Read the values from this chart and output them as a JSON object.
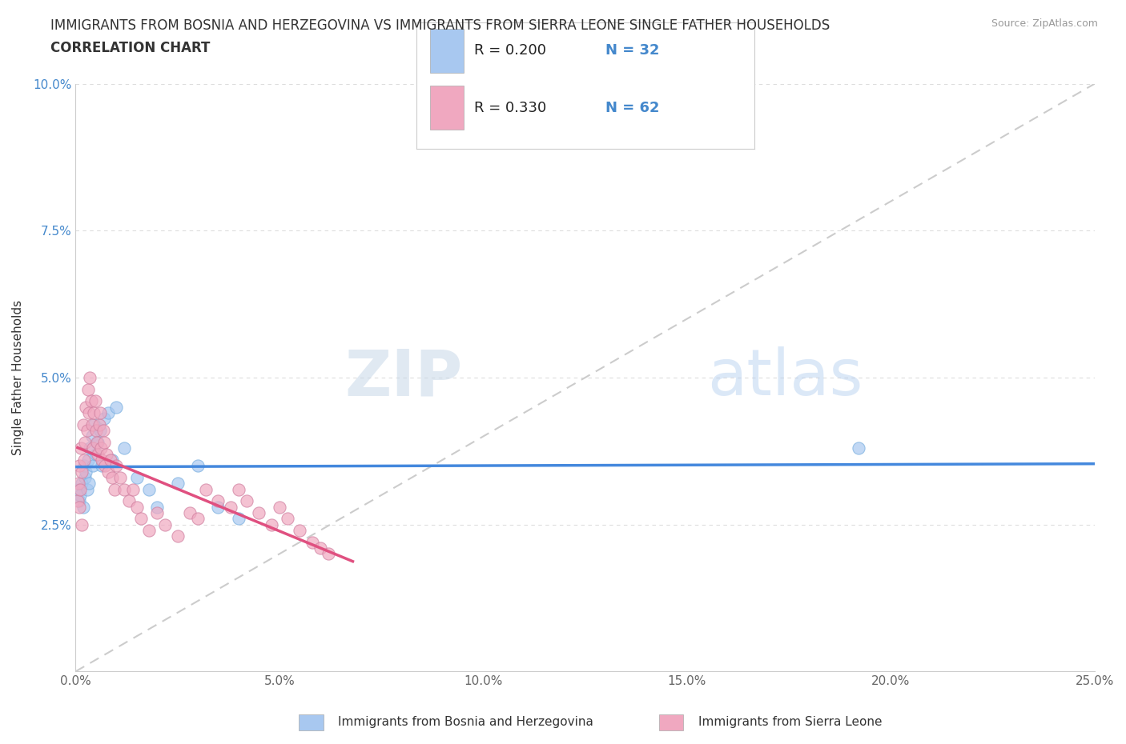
{
  "title_line1": "IMMIGRANTS FROM BOSNIA AND HERZEGOVINA VS IMMIGRANTS FROM SIERRA LEONE SINGLE FATHER HOUSEHOLDS",
  "title_line2": "CORRELATION CHART",
  "source": "Source: ZipAtlas.com",
  "ylabel": "Single Father Households",
  "bos_color": "#a8c8f0",
  "bos_edge": "#7ab0e0",
  "bos_line": "#4488dd",
  "sie_color": "#f0a8c0",
  "sie_edge": "#d080a0",
  "sie_line": "#e05080",
  "ref_line_color": "#cccccc",
  "grid_color": "#dddddd",
  "watermark_color": "#cce8f8",
  "title_color": "#333333",
  "source_color": "#999999",
  "tick_color_y": "#4488cc",
  "tick_color_x": "#666666",
  "xlim": [
    0.0,
    0.25
  ],
  "ylim": [
    0.0,
    0.1
  ],
  "xtick_labels": [
    "0.0%",
    "5.0%",
    "10.0%",
    "15.0%",
    "20.0%",
    "25.0%"
  ],
  "ytick_labels": [
    "",
    "2.5%",
    "5.0%",
    "7.5%",
    "10.0%"
  ],
  "bos_R": 0.2,
  "bos_N": 32,
  "sie_R": 0.33,
  "sie_N": 62,
  "bos_x": [
    0.0008,
    0.001,
    0.0012,
    0.0015,
    0.0018,
    0.002,
    0.0022,
    0.0025,
    0.0028,
    0.003,
    0.0032,
    0.0035,
    0.004,
    0.0042,
    0.0045,
    0.005,
    0.0055,
    0.006,
    0.0065,
    0.007,
    0.008,
    0.009,
    0.01,
    0.012,
    0.015,
    0.018,
    0.02,
    0.025,
    0.03,
    0.035,
    0.04,
    0.192
  ],
  "bos_y": [
    0.031,
    0.029,
    0.03,
    0.032,
    0.028,
    0.035,
    0.033,
    0.034,
    0.031,
    0.036,
    0.032,
    0.038,
    0.04,
    0.035,
    0.042,
    0.037,
    0.039,
    0.041,
    0.035,
    0.043,
    0.044,
    0.036,
    0.045,
    0.038,
    0.033,
    0.031,
    0.028,
    0.032,
    0.035,
    0.028,
    0.026,
    0.038
  ],
  "sie_x": [
    0.0005,
    0.0008,
    0.001,
    0.0012,
    0.0014,
    0.0015,
    0.0018,
    0.002,
    0.0022,
    0.0025,
    0.0028,
    0.003,
    0.0032,
    0.0035,
    0.0038,
    0.004,
    0.0042,
    0.0045,
    0.0048,
    0.005,
    0.0052,
    0.0055,
    0.0058,
    0.006,
    0.0062,
    0.0065,
    0.0068,
    0.007,
    0.0072,
    0.0075,
    0.008,
    0.0085,
    0.009,
    0.0095,
    0.01,
    0.011,
    0.012,
    0.013,
    0.014,
    0.015,
    0.016,
    0.018,
    0.02,
    0.022,
    0.025,
    0.028,
    0.03,
    0.032,
    0.035,
    0.038,
    0.04,
    0.042,
    0.045,
    0.048,
    0.05,
    0.052,
    0.055,
    0.058,
    0.06,
    0.062,
    0.001,
    0.0015
  ],
  "sie_y": [
    0.029,
    0.032,
    0.035,
    0.031,
    0.038,
    0.034,
    0.042,
    0.036,
    0.039,
    0.045,
    0.041,
    0.048,
    0.044,
    0.05,
    0.046,
    0.042,
    0.038,
    0.044,
    0.046,
    0.041,
    0.039,
    0.037,
    0.042,
    0.044,
    0.038,
    0.036,
    0.041,
    0.039,
    0.035,
    0.037,
    0.034,
    0.036,
    0.033,
    0.031,
    0.035,
    0.033,
    0.031,
    0.029,
    0.031,
    0.028,
    0.026,
    0.024,
    0.027,
    0.025,
    0.023,
    0.027,
    0.026,
    0.031,
    0.029,
    0.028,
    0.031,
    0.029,
    0.027,
    0.025,
    0.028,
    0.026,
    0.024,
    0.022,
    0.021,
    0.02,
    0.028,
    0.025
  ],
  "bos_line_x": [
    0.0,
    0.25
  ],
  "sie_line_xmax": 0.068,
  "legend_R_bos": "R = 0.200",
  "legend_N_bos": "N = 32",
  "legend_R_sie": "R = 0.330",
  "legend_N_sie": "N = 62",
  "legend_label_bos": "Immigrants from Bosnia and Herzegovina",
  "legend_label_sie": "Immigrants from Sierra Leone"
}
